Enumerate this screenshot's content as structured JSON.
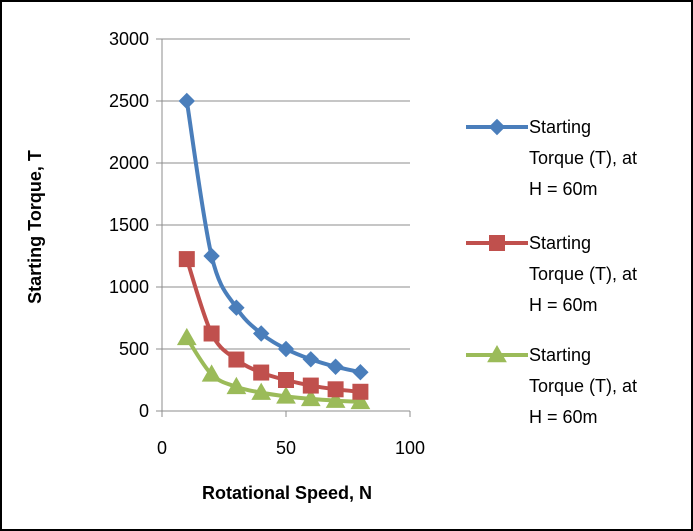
{
  "chart_data": {
    "type": "line",
    "xlabel": "Rotational Speed, N",
    "ylabel": "Starting Torque, T",
    "xlim": [
      0,
      100
    ],
    "ylim": [
      0,
      3000
    ],
    "xticks": [
      "0",
      "50",
      "100"
    ],
    "yticks": [
      "0",
      "500",
      "1000",
      "1500",
      "2000",
      "2500",
      "3000"
    ],
    "grid": "horizontal",
    "legend_position": "right",
    "x": [
      10,
      20,
      30,
      40,
      50,
      60,
      70,
      80
    ],
    "series": [
      {
        "name": "Starting Torque (T), at H = 60m",
        "legend_lines": [
          "Starting",
          "Torque (T), at",
          "H = 60m"
        ],
        "color": "#4a7ebb",
        "marker": "diamond",
        "values": [
          2500,
          1250,
          833,
          625,
          500,
          417,
          357,
          313
        ]
      },
      {
        "name": "Starting Torque (T), at H = 60m",
        "legend_lines": [
          "Starting",
          "Torque (T), at",
          "H = 60m"
        ],
        "color": "#c0504d",
        "marker": "square",
        "values": [
          1225,
          625,
          415,
          310,
          250,
          205,
          175,
          155
        ]
      },
      {
        "name": "Starting Torque (T), at H = 60m",
        "legend_lines": [
          "Starting",
          "Torque (T), at",
          "H = 60m"
        ],
        "color": "#9bbb59",
        "marker": "triangle",
        "values": [
          590,
          295,
          195,
          148,
          118,
          98,
          84,
          74
        ]
      }
    ]
  }
}
